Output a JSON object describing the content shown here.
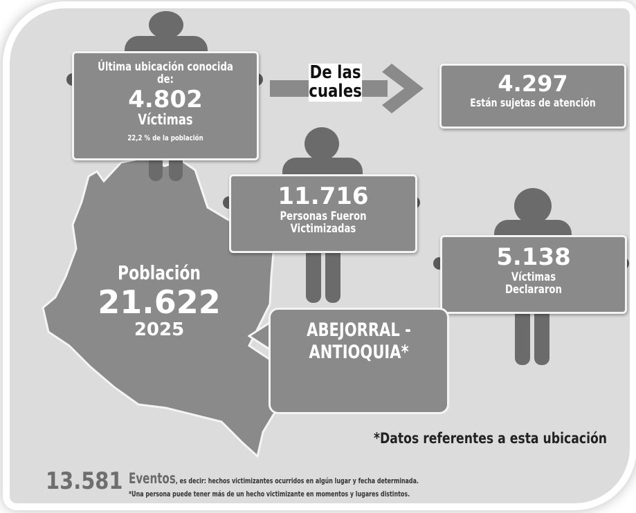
{
  "last_location": {
    "heading": "Última ubicación conocida de:",
    "number": "4.802",
    "label": "Víctimas",
    "percent": "22,2 % de la población"
  },
  "connector": {
    "text_line1": "De las",
    "text_line2": "cuales"
  },
  "subject_to_attention": {
    "number": "4.297",
    "label": "Están sujetas de atención"
  },
  "victimized": {
    "number": "11.716",
    "label_line1": "Personas Fueron",
    "label_line2": "Victimizadas"
  },
  "declared": {
    "number": "5.138",
    "label_line1": "Víctimas",
    "label_line2": "Declararon"
  },
  "population": {
    "label": "Población",
    "number": "21.622",
    "year": "2025"
  },
  "location": {
    "line1": "ABEJORRAL -",
    "line2": "ANTIOQUIA*"
  },
  "location_note": "*Datos referentes a esta ubicación",
  "events": {
    "number": "13.581",
    "word": "Eventos",
    "description": ", es decir: hechos victimizantes ocurridos en algún lugar y fecha determinada.",
    "note": "*Una persona puede tener más de un hecho victimizante en momentos y lugares distintos."
  },
  "colors": {
    "panel": "#dcdcdc",
    "sign": "#8a8a8a",
    "figure": "#6b6b6b"
  }
}
